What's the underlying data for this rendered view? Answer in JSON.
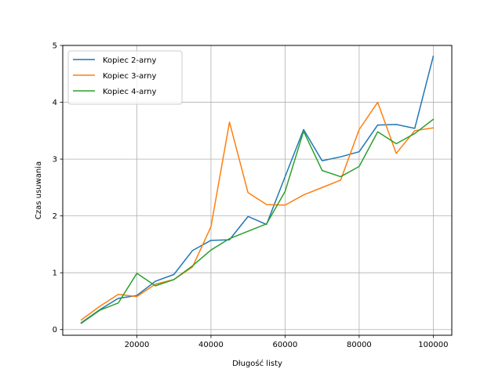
{
  "chart_data": {
    "type": "line",
    "title": "",
    "xlabel": "Długość listy",
    "ylabel": "Czas usuwania",
    "xlim": [
      0,
      105000
    ],
    "ylim": [
      -0.1,
      5.0
    ],
    "xticks": [
      20000,
      40000,
      60000,
      80000,
      100000
    ],
    "xtick_labels": [
      "20000",
      "40000",
      "60000",
      "80000",
      "100000"
    ],
    "yticks": [
      0,
      1,
      2,
      3,
      4,
      5
    ],
    "ytick_labels": [
      "0",
      "1",
      "2",
      "3",
      "4",
      "5"
    ],
    "grid": true,
    "legend_position": "upper-left",
    "x": [
      5000,
      10000,
      15000,
      20000,
      25000,
      30000,
      35000,
      40000,
      45000,
      50000,
      55000,
      60000,
      65000,
      70000,
      75000,
      80000,
      85000,
      90000,
      95000,
      100000
    ],
    "series": [
      {
        "name": "Kopiec 2-arny",
        "color": "#1f77b4",
        "values": [
          0.12,
          0.35,
          0.55,
          0.6,
          0.85,
          0.97,
          1.39,
          1.57,
          1.58,
          1.99,
          1.85,
          2.69,
          3.52,
          2.97,
          3.04,
          3.13,
          3.6,
          3.61,
          3.54,
          4.81
        ]
      },
      {
        "name": "Kopiec 3-arny",
        "color": "#ff7f0e",
        "values": [
          0.17,
          0.41,
          0.62,
          0.58,
          0.8,
          0.88,
          1.1,
          1.81,
          3.65,
          2.41,
          2.2,
          2.19,
          2.37,
          2.5,
          2.63,
          3.52,
          4.0,
          3.1,
          3.5,
          3.55
        ]
      },
      {
        "name": "Kopiec 4-arny",
        "color": "#2ca02c",
        "values": [
          0.11,
          0.34,
          0.47,
          0.99,
          0.77,
          0.88,
          1.12,
          1.4,
          1.6,
          1.73,
          1.86,
          2.43,
          3.49,
          2.8,
          2.69,
          2.87,
          3.48,
          3.27,
          3.45,
          3.7
        ]
      }
    ]
  }
}
